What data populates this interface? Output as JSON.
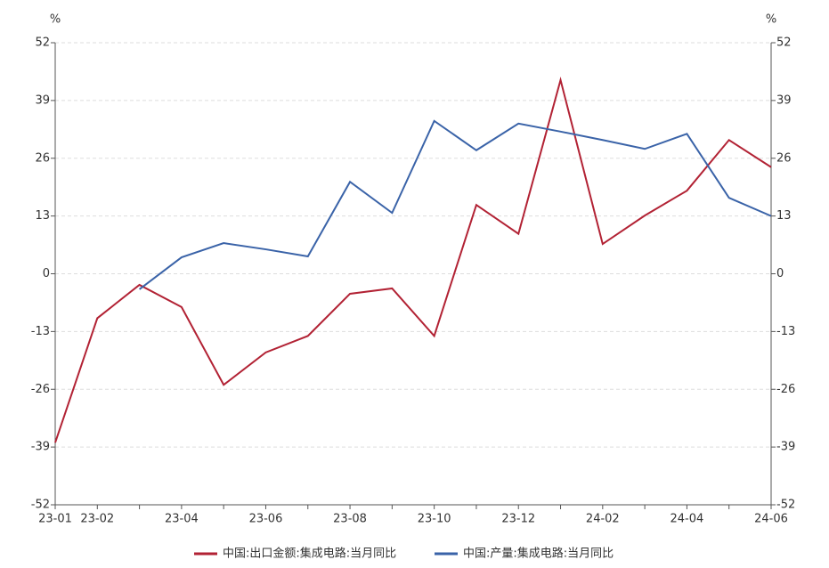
{
  "chart_data": {
    "type": "line",
    "y_unit": "%",
    "y2_unit": "%",
    "categories": [
      "23-01",
      "23-02",
      null,
      "23-04",
      null,
      "23-06",
      null,
      "23-08",
      null,
      "23-10",
      null,
      "23-12",
      null,
      "24-02",
      null,
      "24-04",
      null,
      "24-06"
    ],
    "series": [
      {
        "name": "中国:出口金额:集成电路:当月同比",
        "color": "#b22234",
        "values": [
          -38,
          -10,
          -2.5,
          -7.5,
          -25,
          -17.7,
          -14,
          -4.5,
          -3.3,
          -14,
          15.5,
          9,
          43.6,
          6.7,
          13.1,
          18.7,
          30.1,
          24
        ]
      },
      {
        "name": "中国:产量:集成电路:当月同比",
        "color": "#3a63a8",
        "axis": "y2",
        "values": [
          null,
          null,
          -3.5,
          3.7,
          6.9,
          5.5,
          3.9,
          20.7,
          13.7,
          34.4,
          27.8,
          33.8,
          32,
          30.1,
          28.1,
          31.5,
          17.1,
          13
        ]
      }
    ],
    "ylim": [
      -52,
      52
    ],
    "yticks": [
      -52,
      -39,
      -26,
      -13,
      0,
      13,
      26,
      39,
      52
    ],
    "y2lim": [
      -52,
      52
    ],
    "y2ticks": [
      -52,
      -39,
      -26,
      -13,
      0,
      13,
      26,
      39,
      52
    ],
    "grid": true
  }
}
